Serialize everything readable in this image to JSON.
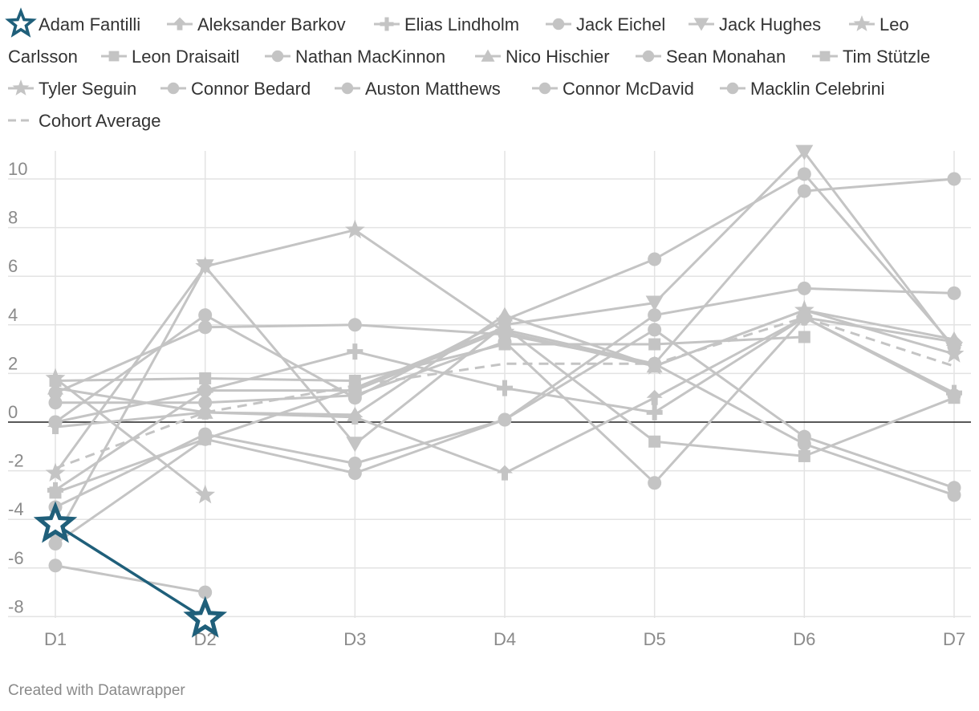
{
  "footer": "Created with Datawrapper",
  "colors": {
    "highlight": "#1f5f7a",
    "grey": "#c4c4c4",
    "grid": "#e3e3e3",
    "zero": "#222222"
  },
  "chart_data": {
    "type": "line",
    "categories": [
      "D1",
      "D2",
      "D3",
      "D4",
      "D5",
      "D6",
      "D7"
    ],
    "ylim": [
      -8.5,
      11
    ],
    "yticks": [
      -8,
      -6,
      -4,
      -2,
      0,
      2,
      4,
      6,
      8,
      10
    ],
    "grid": true,
    "legend_position": "top",
    "series": [
      {
        "name": "Adam Fantilli",
        "marker": "star-outline",
        "highlight": true,
        "values": [
          -4.2,
          -8.1,
          null,
          null,
          null,
          null,
          null
        ]
      },
      {
        "name": "Aleksander Barkov",
        "marker": "arrow",
        "values": [
          -0.2,
          0.4,
          0.2,
          -2.1,
          1.0,
          4.3,
          3.3
        ]
      },
      {
        "name": "Elias Lindholm",
        "marker": "plus",
        "values": [
          -2.8,
          1.3,
          2.9,
          1.4,
          0.4,
          4.3,
          1.2
        ]
      },
      {
        "name": "Jack Eichel",
        "marker": "circle",
        "values": [
          0.8,
          0.8,
          1.1,
          3.3,
          -2.5,
          4.3,
          1.1
        ]
      },
      {
        "name": "Jack Hughes",
        "marker": "triangle-down",
        "values": [
          -4.8,
          6.4,
          -0.9,
          4.0,
          4.9,
          11.1,
          3.0
        ]
      },
      {
        "name": "Leo Carlsson",
        "marker": "star",
        "values": [
          1.8,
          -3.0,
          null,
          null,
          null,
          null,
          null
        ]
      },
      {
        "name": "Leon Draisaitl",
        "marker": "square",
        "values": [
          1.7,
          1.8,
          1.7,
          3.2,
          3.2,
          3.5,
          null
        ]
      },
      {
        "name": "Nathan MacKinnon",
        "marker": "circle",
        "values": [
          -5.0,
          -0.7,
          -2.1,
          0.1,
          4.4,
          5.5,
          5.3
        ]
      },
      {
        "name": "Nico Hischier",
        "marker": "triangle",
        "values": [
          1.4,
          0.4,
          0.3,
          4.4,
          2.3,
          4.6,
          3.4
        ]
      },
      {
        "name": "Sean Monahan",
        "marker": "circle",
        "values": [
          -3.5,
          -0.5,
          -1.7,
          0.1,
          3.8,
          -0.6,
          -2.7
        ]
      },
      {
        "name": "Tim Stützle",
        "marker": "square",
        "values": [
          -2.9,
          -0.7,
          1.4,
          3.9,
          -0.8,
          -1.4,
          1.0
        ]
      },
      {
        "name": "Tyler Seguin",
        "marker": "star",
        "values": [
          -2.1,
          6.4,
          7.9,
          3.7,
          2.3,
          4.6,
          2.8
        ]
      },
      {
        "name": "Connor Bedard",
        "marker": "circle",
        "values": [
          -5.9,
          -7.0,
          null,
          null,
          null,
          null,
          null
        ]
      },
      {
        "name": "Auston Matthews",
        "marker": "circle",
        "values": [
          0.0,
          4.4,
          1.0,
          4.2,
          6.7,
          10.2,
          3.1
        ]
      },
      {
        "name": "Connor McDavid",
        "marker": "circle",
        "values": [
          0.0,
          1.3,
          1.3,
          3.8,
          2.4,
          9.5,
          10.0
        ]
      },
      {
        "name": "Macklin Celebrini",
        "marker": "circle",
        "values": [
          1.2,
          3.9,
          4.0,
          3.6,
          2.4,
          -0.9,
          -3.0
        ]
      },
      {
        "name": "Cohort Average",
        "marker": "dashed",
        "values": [
          -1.9,
          0.4,
          1.5,
          2.4,
          2.4,
          4.3,
          2.3
        ]
      }
    ]
  }
}
